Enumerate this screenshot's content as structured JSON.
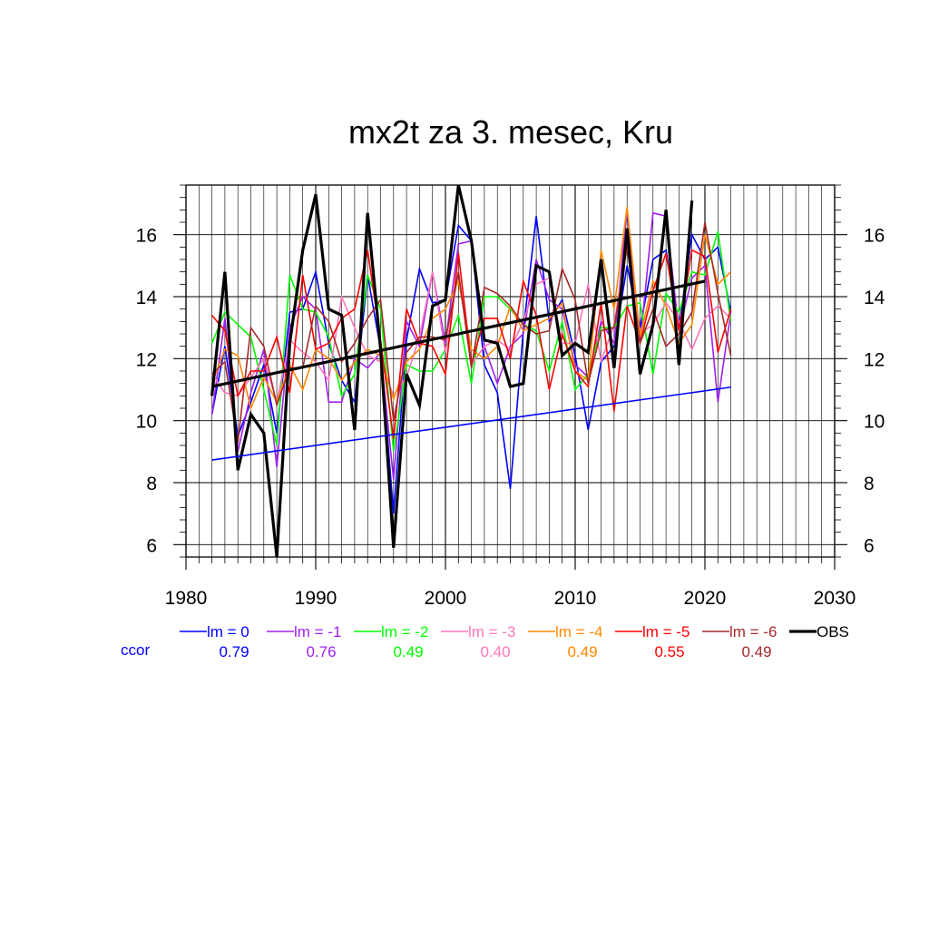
{
  "chart_data": {
    "type": "line",
    "title": "mx2t za 3. mesec, Kru",
    "xlim": [
      1980,
      2030
    ],
    "ylim": [
      5.6,
      17.6
    ],
    "x_ticks": [
      1980,
      1990,
      2000,
      2010,
      2020,
      2030
    ],
    "y_ticks": [
      6,
      8,
      10,
      12,
      14,
      16
    ],
    "grid": true,
    "legend_position": "bottom",
    "ccor_label": "ccor",
    "x": [
      1982,
      1983,
      1984,
      1985,
      1986,
      1987,
      1988,
      1989,
      1990,
      1991,
      1992,
      1993,
      1994,
      1995,
      1996,
      1997,
      1998,
      1999,
      2000,
      2001,
      2002,
      2003,
      2004,
      2005,
      2006,
      2007,
      2008,
      2009,
      2010,
      2011,
      2012,
      2013,
      2014,
      2015,
      2016,
      2017,
      2018,
      2019,
      2020,
      2021,
      2022
    ],
    "series": [
      {
        "name": "lm = 0",
        "color": "#0000ff",
        "ccor": "0.79",
        "width": 1.6,
        "values": [
          10.2,
          12.4,
          9.5,
          10.6,
          11.8,
          9.6,
          13.5,
          13.6,
          14.8,
          12.5,
          11.3,
          10.6,
          14.7,
          12.3,
          7.0,
          12.6,
          14.9,
          13.8,
          13.9,
          16.3,
          15.8,
          11.8,
          10.9,
          7.8,
          12.9,
          16.6,
          13.2,
          13.9,
          12.1,
          9.7,
          11.9,
          12.4,
          15.0,
          13.0,
          15.2,
          15.5,
          13.0,
          16.0,
          15.2,
          15.6,
          13.5
        ]
      },
      {
        "name": "lm = -1",
        "color": "#a020f0",
        "ccor": "0.76",
        "width": 1.6,
        "values": [
          10.2,
          13.3,
          9.0,
          10.9,
          12.3,
          8.5,
          13.0,
          14.0,
          13.6,
          10.6,
          10.6,
          12.0,
          11.7,
          12.2,
          8.1,
          13.2,
          12.4,
          14.8,
          12.5,
          15.7,
          15.8,
          12.4,
          11.2,
          12.4,
          12.8,
          15.2,
          13.9,
          13.6,
          11.8,
          11.4,
          13.2,
          12.5,
          16.8,
          12.5,
          16.7,
          16.6,
          12.9,
          14.6,
          15.0,
          10.6,
          13.5
        ]
      },
      {
        "name": "lm = -2",
        "color": "#00ff00",
        "ccor": "0.49",
        "width": 1.6,
        "values": [
          12.5,
          13.5,
          13.1,
          12.7,
          11.0,
          9.2,
          14.7,
          13.6,
          13.5,
          12.7,
          10.8,
          11.5,
          14.7,
          13.6,
          9.0,
          11.8,
          11.6,
          11.6,
          12.3,
          13.4,
          11.2,
          14.0,
          14.0,
          13.6,
          13.1,
          12.9,
          11.6,
          13.2,
          11.0,
          11.5,
          13.0,
          13.0,
          13.7,
          13.8,
          11.5,
          14.1,
          13.5,
          14.8,
          14.7,
          16.1,
          13.2
        ]
      },
      {
        "name": "lm = -3",
        "color": "#ff77bb",
        "ccor": "0.40",
        "width": 1.6,
        "values": [
          11.5,
          10.9,
          10.8,
          11.4,
          12.0,
          10.6,
          12.6,
          12.2,
          11.9,
          11.3,
          14.0,
          13.0,
          12.1,
          11.9,
          10.8,
          11.4,
          12.7,
          14.8,
          12.2,
          14.8,
          11.8,
          12.4,
          12.6,
          12.3,
          13.2,
          14.4,
          14.6,
          12.5,
          12.5,
          14.4,
          11.9,
          13.1,
          15.8,
          12.8,
          13.1,
          13.8,
          13.2,
          12.3,
          13.3,
          13.7,
          13.3
        ]
      },
      {
        "name": "lm = -4",
        "color": "#ff8800",
        "ccor": "0.49",
        "width": 1.6,
        "values": [
          11.2,
          12.3,
          12.1,
          10.4,
          11.4,
          10.6,
          11.8,
          11.0,
          12.3,
          12.0,
          11.3,
          11.9,
          12.3,
          12.1,
          10.7,
          11.9,
          12.3,
          13.3,
          13.6,
          14.5,
          12.3,
          12.0,
          12.4,
          13.7,
          12.9,
          13.1,
          13.3,
          13.8,
          11.6,
          11.3,
          15.5,
          13.6,
          16.9,
          12.7,
          14.5,
          13.7,
          12.5,
          13.1,
          16.0,
          14.4,
          14.8
        ]
      },
      {
        "name": "lm = -5",
        "color": "#ff0000",
        "ccor": "0.55",
        "width": 1.6,
        "values": [
          13.4,
          12.9,
          10.8,
          11.6,
          11.6,
          12.7,
          10.9,
          14.7,
          12.3,
          12.5,
          13.3,
          13.6,
          15.5,
          12.6,
          9.4,
          13.6,
          12.5,
          12.4,
          11.5,
          15.4,
          11.8,
          13.3,
          13.3,
          12.0,
          14.5,
          13.4,
          11.0,
          12.8,
          11.6,
          11.1,
          13.8,
          10.3,
          13.7,
          12.5,
          14.2,
          15.4,
          12.9,
          15.5,
          15.3,
          12.2,
          13.6
        ]
      },
      {
        "name": "lm = -6",
        "color": "#a52a2a",
        "ccor": "0.49",
        "width": 1.6,
        "values": [
          11.5,
          11.9,
          9.3,
          13.0,
          12.4,
          10.5,
          11.7,
          11.7,
          13.7,
          13.2,
          11.9,
          12.5,
          13.3,
          13.9,
          10.0,
          12.2,
          12.7,
          12.7,
          12.6,
          14.8,
          11.7,
          14.3,
          14.1,
          13.7,
          13.1,
          12.8,
          12.9,
          14.9,
          13.9,
          11.2,
          12.9,
          13.0,
          15.6,
          12.5,
          13.6,
          12.4,
          12.8,
          13.5,
          16.4,
          14.1,
          12.1
        ]
      },
      {
        "name": "OBS",
        "color": "#000000",
        "ccor": "",
        "width": 3.2,
        "values": [
          10.8,
          14.8,
          8.4,
          10.2,
          9.6,
          5.6,
          12.5,
          15.5,
          17.3,
          13.6,
          13.4,
          9.7,
          16.7,
          12.3,
          5.9,
          11.5,
          10.5,
          13.7,
          13.9,
          17.6,
          15.8,
          12.6,
          12.5,
          11.1,
          11.2,
          15.0,
          14.8,
          12.1,
          12.5,
          12.2,
          15.2,
          11.7,
          16.2,
          11.5,
          13.1,
          16.8,
          11.8,
          17.1,
          null,
          null,
          null
        ]
      }
    ],
    "trend_lines": [
      {
        "name": "lm = 0 trend",
        "color": "#0000ff",
        "x": [
          1982,
          2022
        ],
        "values": [
          8.73,
          11.08
        ],
        "width": 1.6
      },
      {
        "name": "OBS trend",
        "color": "#000000",
        "x": [
          1982,
          2020
        ],
        "values": [
          11.1,
          14.5
        ],
        "width": 3.2
      }
    ]
  }
}
